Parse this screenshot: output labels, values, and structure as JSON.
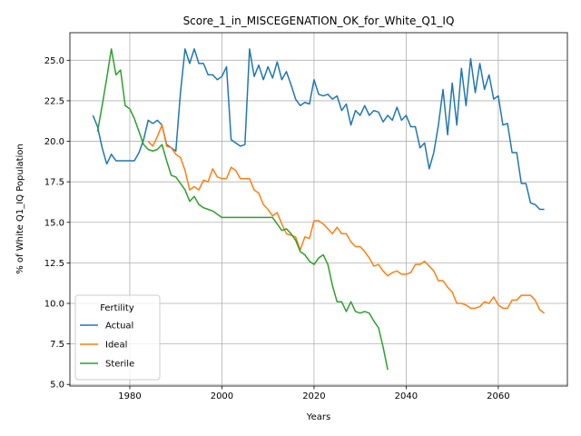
{
  "chart_data": {
    "type": "line",
    "title": "Score_1_in_MISCEGENATION_OK_for_White_Q1_IQ",
    "xlabel": "Years",
    "ylabel": "% of White Q1_IQ Population",
    "xlim": [
      1967,
      2075
    ],
    "ylim": [
      4.9,
      26.7
    ],
    "xticks": [
      1980,
      2000,
      2020,
      2040,
      2060
    ],
    "yticks": [
      5.0,
      7.5,
      10.0,
      12.5,
      15.0,
      17.5,
      20.0,
      22.5,
      25.0
    ],
    "grid": true,
    "legend": {
      "title": "Fertility",
      "position": "bottom-left"
    },
    "series": [
      {
        "name": "Actual",
        "color": "#1f77b4",
        "x": [
          1972,
          1973,
          1974,
          1975,
          1976,
          1977,
          1978,
          1979,
          1980,
          1981,
          1982,
          1983,
          1984,
          1985,
          1986,
          1987,
          1988,
          1989,
          1990,
          1991,
          1992,
          1993,
          1994,
          1995,
          1996,
          1997,
          1998,
          1999,
          2000,
          2001,
          2002,
          2003,
          2004,
          2005,
          2006,
          2007,
          2008,
          2009,
          2010,
          2011,
          2012,
          2013,
          2014,
          2015,
          2016,
          2017,
          2018,
          2019,
          2020,
          2021,
          2022,
          2023,
          2024,
          2025,
          2026,
          2027,
          2028,
          2029,
          2030,
          2031,
          2032,
          2033,
          2034,
          2035,
          2036,
          2037,
          2038,
          2039,
          2040,
          2041,
          2042,
          2043,
          2044,
          2045,
          2046,
          2047,
          2048,
          2049,
          2050,
          2051,
          2052,
          2053,
          2054,
          2055,
          2056,
          2057,
          2058,
          2059,
          2060,
          2061,
          2062,
          2063,
          2064,
          2065,
          2066,
          2067,
          2068,
          2069,
          2070
        ],
        "y": [
          21.6,
          20.9,
          19.6,
          18.6,
          19.2,
          18.8,
          18.8,
          18.8,
          18.8,
          18.8,
          19.3,
          20.1,
          21.3,
          21.1,
          21.3,
          21.0,
          19.8,
          19.6,
          19.4,
          23.0,
          25.7,
          24.8,
          25.7,
          24.8,
          24.8,
          24.1,
          24.1,
          23.8,
          24.0,
          24.6,
          20.1,
          19.9,
          19.7,
          19.8,
          25.7,
          24.0,
          24.7,
          23.8,
          24.6,
          23.9,
          24.9,
          23.8,
          24.3,
          23.5,
          22.6,
          22.2,
          22.4,
          22.3,
          23.8,
          22.9,
          22.8,
          22.9,
          22.6,
          22.8,
          21.9,
          22.3,
          21.0,
          21.9,
          21.6,
          22.2,
          21.6,
          21.9,
          21.8,
          21.2,
          21.6,
          21.3,
          22.1,
          21.3,
          21.6,
          20.9,
          20.9,
          19.6,
          19.9,
          18.3,
          19.3,
          21.0,
          23.2,
          20.4,
          23.6,
          21.0,
          24.5,
          22.2,
          25.1,
          23.0,
          24.8,
          23.2,
          24.1,
          22.6,
          22.8,
          21.0,
          21.1,
          19.3,
          19.3,
          17.4,
          17.4,
          16.2,
          16.1,
          15.8,
          15.8
        ]
      },
      {
        "name": "Ideal",
        "color": "#ff7f0e",
        "x": [
          1984,
          1985,
          1986,
          1987,
          1988,
          1989,
          1990,
          1991,
          1992,
          1993,
          1994,
          1995,
          1996,
          1997,
          1998,
          1999,
          2000,
          2001,
          2002,
          2003,
          2004,
          2005,
          2006,
          2007,
          2008,
          2009,
          2010,
          2011,
          2012,
          2013,
          2014,
          2015,
          2016,
          2017,
          2018,
          2019,
          2020,
          2021,
          2022,
          2023,
          2024,
          2025,
          2026,
          2027,
          2028,
          2029,
          2030,
          2031,
          2032,
          2033,
          2034,
          2035,
          2036,
          2037,
          2038,
          2039,
          2040,
          2041,
          2042,
          2043,
          2044,
          2045,
          2046,
          2047,
          2048,
          2049,
          2050,
          2051,
          2052,
          2053,
          2054,
          2055,
          2056,
          2057,
          2058,
          2059,
          2060,
          2061,
          2062,
          2063,
          2064,
          2065,
          2066,
          2067,
          2068,
          2069,
          2070
        ],
        "y": [
          20.0,
          19.7,
          20.3,
          21.0,
          19.7,
          19.6,
          19.2,
          19.0,
          18.2,
          17.0,
          17.2,
          17.0,
          17.6,
          17.5,
          18.3,
          17.8,
          17.7,
          17.7,
          18.4,
          18.2,
          17.7,
          17.7,
          17.7,
          17.0,
          16.8,
          16.1,
          15.8,
          15.4,
          15.6,
          14.9,
          14.3,
          14.2,
          14.1,
          13.3,
          14.1,
          14.0,
          15.1,
          15.1,
          14.9,
          14.6,
          14.3,
          14.7,
          14.3,
          14.3,
          13.8,
          13.5,
          13.5,
          13.2,
          12.8,
          12.3,
          12.4,
          12.0,
          11.7,
          11.9,
          12.0,
          11.8,
          11.8,
          11.9,
          12.4,
          12.4,
          12.6,
          12.3,
          12.0,
          11.4,
          11.4,
          11.0,
          10.7,
          10.0,
          10.0,
          9.9,
          9.7,
          9.7,
          9.8,
          10.1,
          10.0,
          10.4,
          9.9,
          9.7,
          9.7,
          10.2,
          10.2,
          10.5,
          10.5,
          10.5,
          10.2,
          9.6,
          9.4
        ]
      },
      {
        "name": "Sterile",
        "color": "#2ca02c",
        "x": [
          1973,
          1974,
          1975,
          1976,
          1977,
          1978,
          1979,
          1980,
          1981,
          1982,
          1983,
          1984,
          1985,
          1986,
          1987,
          1988,
          1989,
          1990,
          1991,
          1992,
          1993,
          1994,
          1995,
          1996,
          1997,
          1998,
          1999,
          2000,
          2001,
          2002,
          2003,
          2004,
          2005,
          2006,
          2007,
          2008,
          2009,
          2010,
          2011,
          2012,
          2013,
          2014,
          2015,
          2016,
          2017,
          2018,
          2019,
          2020,
          2021,
          2022,
          2023,
          2024,
          2025,
          2026,
          2027,
          2028,
          2029,
          2030,
          2031,
          2032,
          2033,
          2034,
          2035,
          2036
        ],
        "y": [
          20.6,
          22.2,
          23.9,
          25.7,
          24.1,
          24.4,
          22.2,
          22.0,
          21.4,
          20.6,
          19.8,
          19.5,
          19.4,
          19.5,
          19.8,
          18.8,
          17.9,
          17.8,
          17.4,
          17.0,
          16.3,
          16.6,
          16.1,
          15.9,
          15.8,
          15.7,
          15.5,
          15.3,
          15.3,
          15.3,
          15.3,
          15.3,
          15.3,
          15.3,
          15.3,
          15.3,
          15.3,
          15.3,
          15.3,
          14.9,
          14.5,
          14.6,
          14.3,
          13.9,
          13.2,
          13.0,
          12.6,
          12.4,
          12.8,
          13.0,
          12.4,
          11.1,
          10.1,
          10.1,
          9.5,
          10.1,
          9.5,
          9.4,
          9.5,
          9.4,
          8.9,
          8.5,
          7.3,
          5.9
        ]
      }
    ]
  }
}
